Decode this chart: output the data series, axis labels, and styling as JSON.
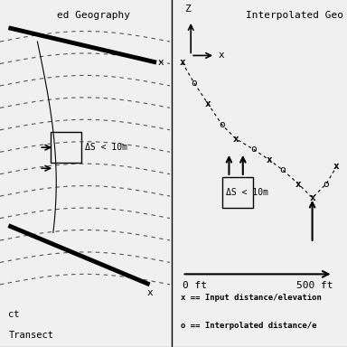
{
  "bg_color": "#f0f0f0",
  "left_title": "ed Geography",
  "right_title": "Interpolated Geo",
  "left_legend_lines": [
    "ct",
    "Transect"
  ],
  "right_legend_lines": [
    "x == Input distance/elevation",
    "o == Interpolated distance/e"
  ],
  "delta_s_label": "ΔS < 10m",
  "x_axis_labels": [
    "0 ft",
    "500 ft"
  ],
  "font_color": "#000000",
  "line_color": "#000000"
}
